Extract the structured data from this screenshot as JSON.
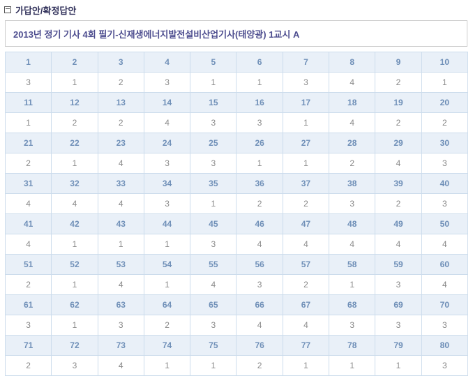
{
  "page": {
    "section_title": "가답안/확정답안",
    "exam_title": "2013년 정기 기사 4회 필기-신재생에너지발전설비산업기사(태양광) 1교시 A"
  },
  "colors": {
    "section_title_text": "#33335c",
    "exam_title_text": "#4d4d8f",
    "title_box_border": "#cccccc",
    "table_outer_border": "#bcc9d6",
    "cell_border": "#ccdcec",
    "header_cell_bg": "#e9f0f8",
    "header_cell_text": "#7090b8",
    "answer_cell_bg": "#ffffff",
    "answer_cell_text": "#8a8a8a"
  },
  "icons": {
    "section_bullet": "list-bullet-square-icon"
  },
  "answer_table": {
    "groups": [
      {
        "questions": [
          1,
          2,
          3,
          4,
          5,
          6,
          7,
          8,
          9,
          10
        ],
        "answers": [
          3,
          1,
          2,
          3,
          1,
          1,
          3,
          4,
          2,
          1
        ]
      },
      {
        "questions": [
          11,
          12,
          13,
          14,
          15,
          16,
          17,
          18,
          19,
          20
        ],
        "answers": [
          1,
          2,
          2,
          4,
          3,
          3,
          1,
          4,
          2,
          2
        ]
      },
      {
        "questions": [
          21,
          22,
          23,
          24,
          25,
          26,
          27,
          28,
          29,
          30
        ],
        "answers": [
          2,
          1,
          4,
          3,
          3,
          1,
          1,
          2,
          4,
          3
        ]
      },
      {
        "questions": [
          31,
          32,
          33,
          34,
          35,
          36,
          37,
          38,
          39,
          40
        ],
        "answers": [
          4,
          4,
          4,
          3,
          1,
          2,
          2,
          3,
          2,
          3
        ]
      },
      {
        "questions": [
          41,
          42,
          43,
          44,
          45,
          46,
          47,
          48,
          49,
          50
        ],
        "answers": [
          4,
          1,
          1,
          1,
          3,
          4,
          4,
          4,
          4,
          4
        ]
      },
      {
        "questions": [
          51,
          52,
          53,
          54,
          55,
          56,
          57,
          58,
          59,
          60
        ],
        "answers": [
          2,
          1,
          4,
          1,
          4,
          3,
          2,
          1,
          3,
          4
        ]
      },
      {
        "questions": [
          61,
          62,
          63,
          64,
          65,
          66,
          67,
          68,
          69,
          70
        ],
        "answers": [
          3,
          1,
          3,
          2,
          3,
          4,
          4,
          3,
          3,
          3
        ]
      },
      {
        "questions": [
          71,
          72,
          73,
          74,
          75,
          76,
          77,
          78,
          79,
          80
        ],
        "answers": [
          2,
          3,
          4,
          1,
          1,
          2,
          1,
          1,
          1,
          3
        ]
      }
    ]
  }
}
